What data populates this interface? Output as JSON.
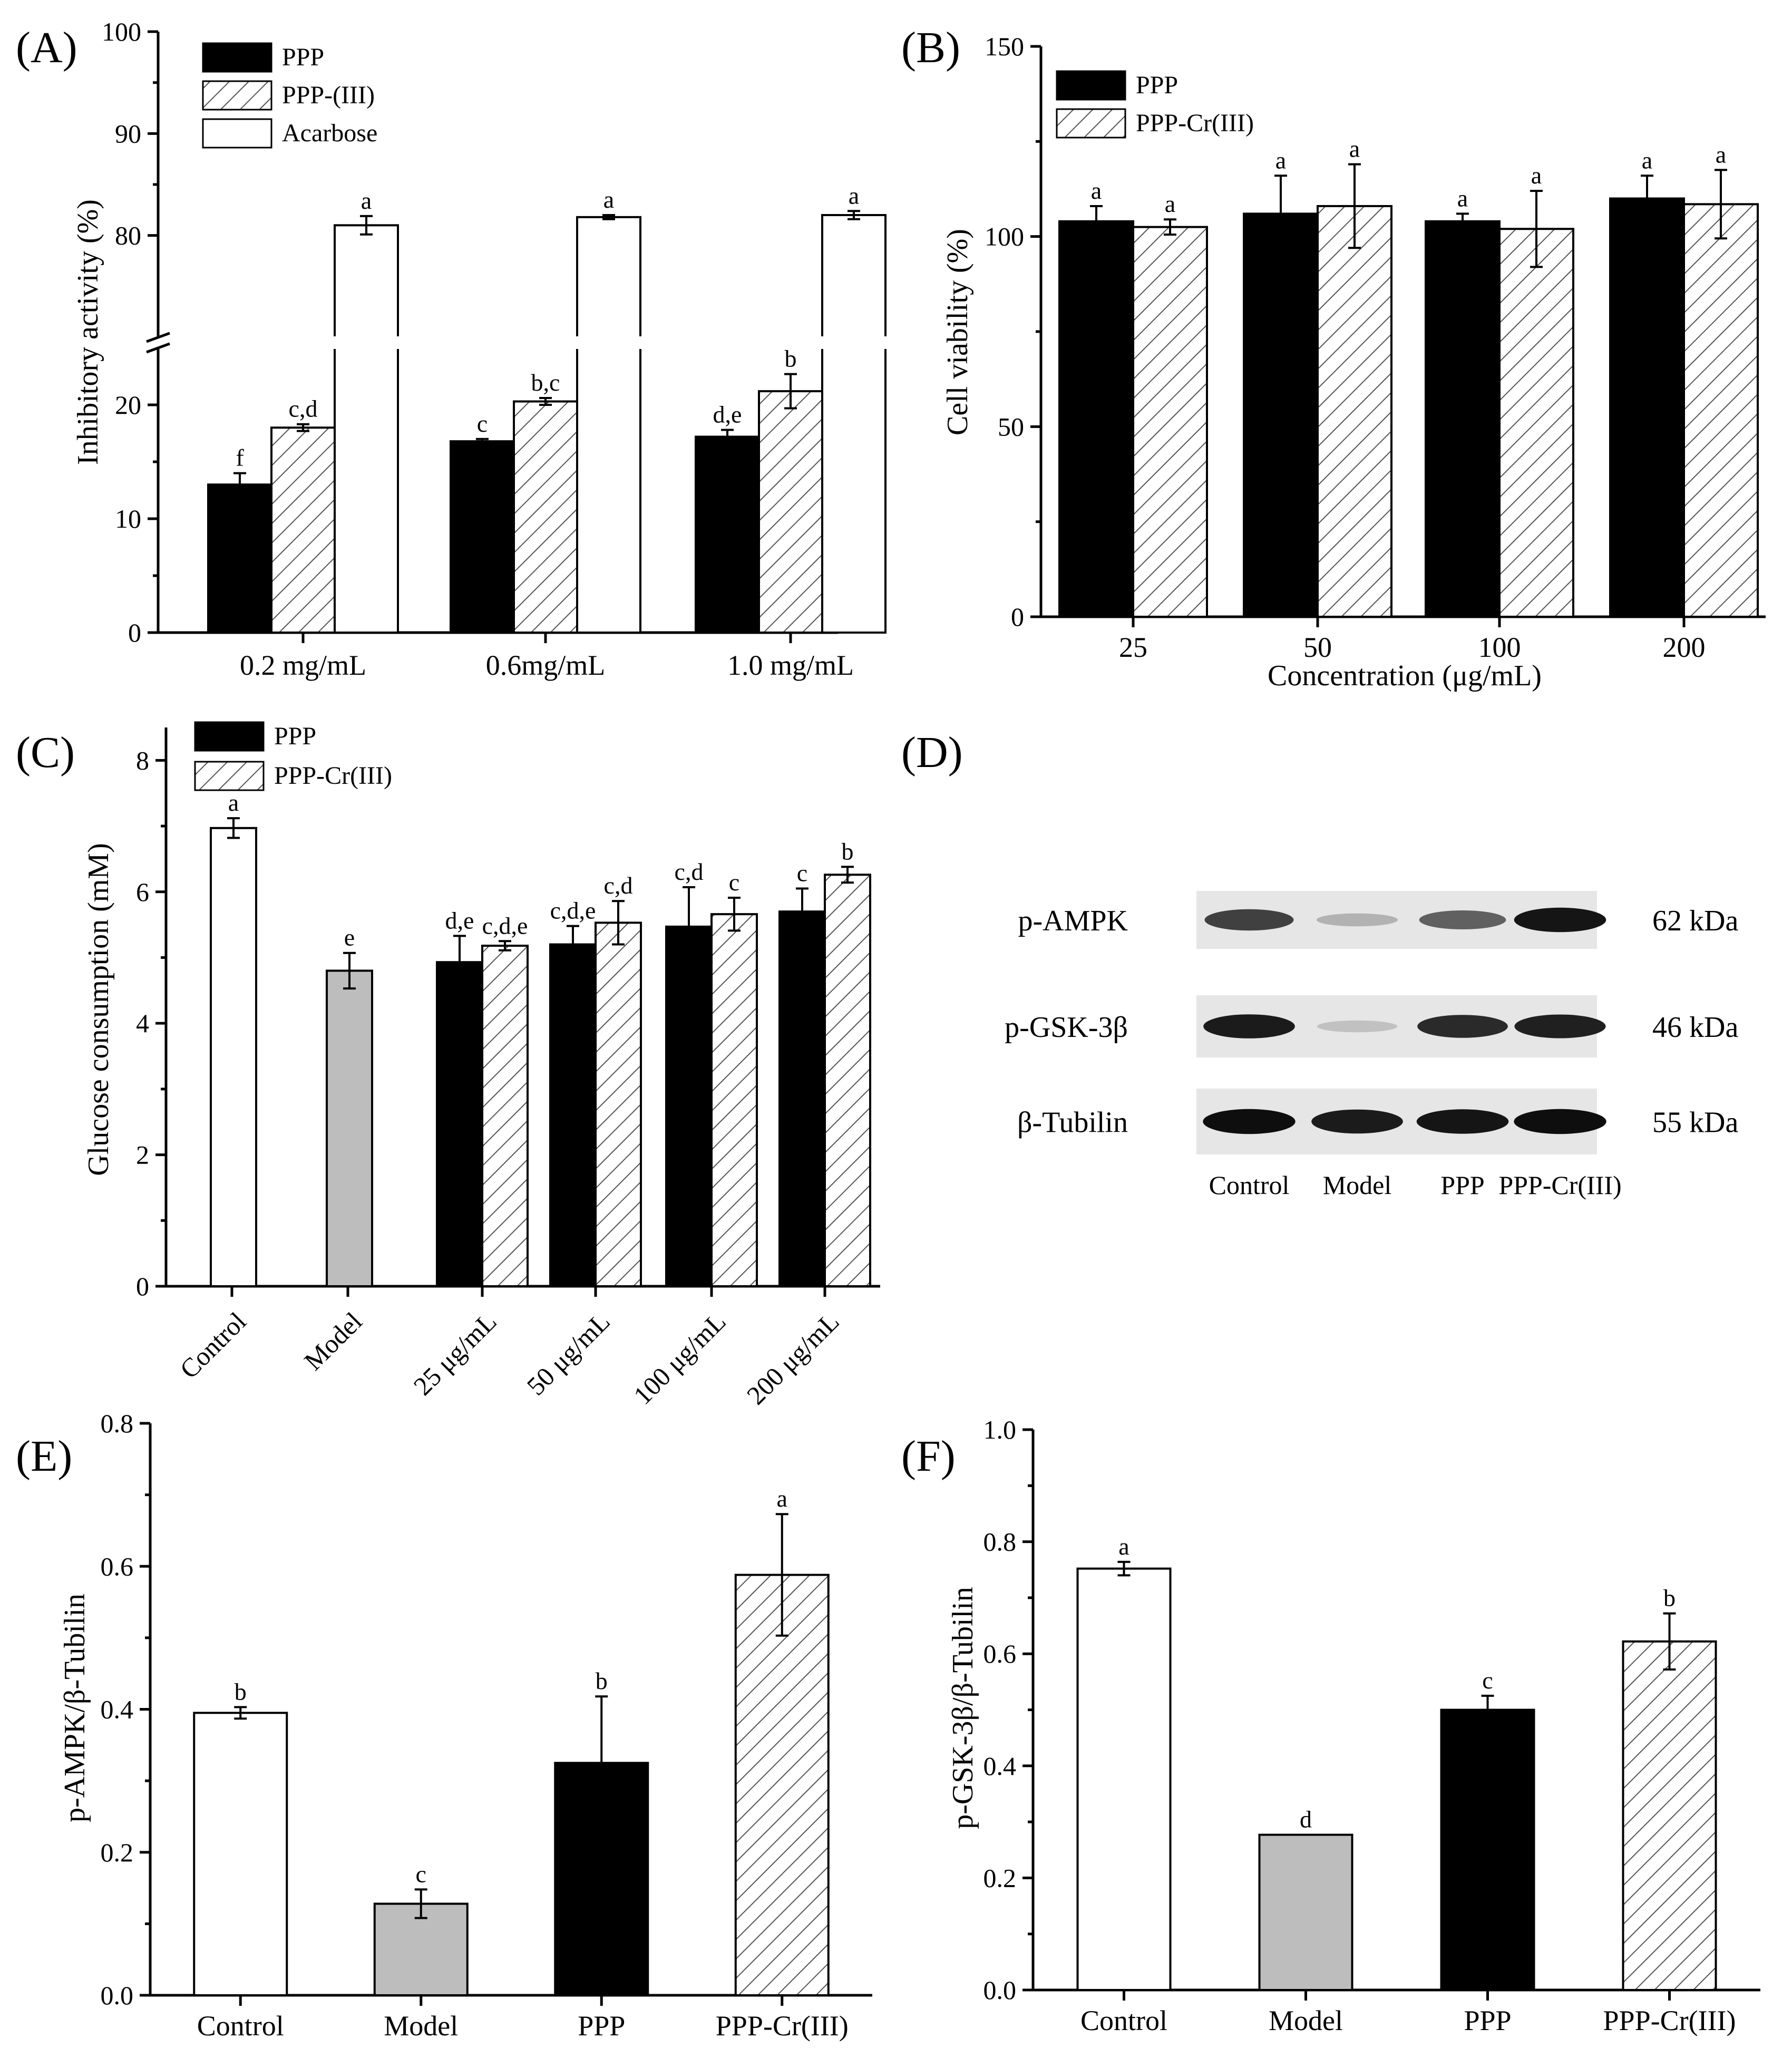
{
  "colors": {
    "black": "#000000",
    "gray": "#bdbdbd",
    "white": "#ffffff",
    "hatch": "#555555"
  },
  "chart_data": [
    {
      "panel": "(A)",
      "type": "bar",
      "ylabel": "Inhibitory activity (%)",
      "categories": [
        "0.2 mg/mL",
        "0.6mg/mL",
        "1.0 mg/mL"
      ],
      "ybreak": [
        25,
        70
      ],
      "yticks": [
        0,
        10,
        20,
        80,
        90,
        100
      ],
      "series": [
        {
          "name": "PPP",
          "style": "black",
          "values": [
            13.0,
            16.8,
            17.2
          ],
          "errors": [
            1.0,
            0.2,
            0.6
          ],
          "letters": [
            "f",
            "c",
            "d,e"
          ]
        },
        {
          "name": "PPP-(III)",
          "style": "hatch",
          "values": [
            18.0,
            20.3,
            21.2
          ],
          "errors": [
            0.3,
            0.3,
            1.5
          ],
          "letters": [
            "c,d",
            "b,c",
            "b"
          ]
        },
        {
          "name": "Acarbose",
          "style": "white",
          "values": [
            81.0,
            81.8,
            82.0
          ],
          "errors": [
            0.9,
            0.2,
            0.4
          ],
          "letters": [
            "a",
            "a",
            "a"
          ]
        }
      ]
    },
    {
      "panel": "(B)",
      "type": "bar",
      "ylabel": "Cell viability (%)",
      "xlabel": "Concentration (μg/mL)",
      "categories": [
        "25",
        "50",
        "100",
        "200"
      ],
      "ylim": [
        0,
        150
      ],
      "yticks": [
        0,
        50,
        100,
        150
      ],
      "series": [
        {
          "name": "PPP",
          "style": "black",
          "values": [
            104,
            106,
            104,
            110
          ],
          "errors": [
            4,
            10,
            2,
            6
          ],
          "letters": [
            "a",
            "a",
            "a",
            "a"
          ]
        },
        {
          "name": "PPP-Cr(III)",
          "style": "hatch",
          "values": [
            102.5,
            108,
            102,
            108.5
          ],
          "errors": [
            2,
            11,
            10,
            9
          ],
          "letters": [
            "a",
            "a",
            "a",
            "a"
          ]
        }
      ]
    },
    {
      "panel": "(C)",
      "type": "bar",
      "ylabel": "Glucose consumption (mM)",
      "categories": [
        "Control",
        "Model",
        "25 μg/mL",
        "50 μg/mL",
        "100 μg/mL",
        "200 μg/mL"
      ],
      "ylim": [
        0,
        8.5
      ],
      "yticks": [
        0,
        2,
        4,
        6,
        8
      ],
      "legend": [
        "PPP",
        "PPP-Cr(III)"
      ],
      "bars": [
        {
          "cat": 0,
          "style": "white",
          "value": 6.97,
          "error": 0.15,
          "letter": "a"
        },
        {
          "cat": 1,
          "style": "gray",
          "value": 4.8,
          "error": 0.27,
          "letter": "e"
        },
        {
          "cat": 2,
          "style": "black",
          "value": 4.93,
          "error": 0.4,
          "letter": "d,e"
        },
        {
          "cat": 2,
          "style": "hatch",
          "value": 5.18,
          "error": 0.07,
          "letter": "c,d,e"
        },
        {
          "cat": 3,
          "style": "black",
          "value": 5.2,
          "error": 0.28,
          "letter": "c,d,e"
        },
        {
          "cat": 3,
          "style": "hatch",
          "value": 5.53,
          "error": 0.33,
          "letter": "c,d"
        },
        {
          "cat": 4,
          "style": "black",
          "value": 5.47,
          "error": 0.6,
          "letter": "c,d"
        },
        {
          "cat": 4,
          "style": "hatch",
          "value": 5.66,
          "error": 0.25,
          "letter": "c"
        },
        {
          "cat": 5,
          "style": "black",
          "value": 5.7,
          "error": 0.35,
          "letter": "c"
        },
        {
          "cat": 5,
          "style": "hatch",
          "value": 6.26,
          "error": 0.12,
          "letter": "b"
        }
      ]
    },
    {
      "panel": "(E)",
      "type": "bar",
      "ylabel": "p-AMPK/β-Tubilin",
      "categories": [
        "Control",
        "Model",
        "PPP",
        "PPP-Cr(III)"
      ],
      "ylim": [
        0,
        0.8
      ],
      "yticks": [
        "0.0",
        "0.2",
        "0.4",
        "0.6",
        "0.8"
      ],
      "styles": [
        "white",
        "gray",
        "black",
        "hatch"
      ],
      "values": [
        0.395,
        0.128,
        0.325,
        0.588
      ],
      "errors": [
        0.008,
        0.02,
        0.093,
        0.085
      ],
      "letters": [
        "b",
        "c",
        "b",
        "a"
      ]
    },
    {
      "panel": "(F)",
      "type": "bar",
      "ylabel": "p-GSK-3β/β-Tubilin",
      "categories": [
        "Control",
        "Model",
        "PPP",
        "PPP-Cr(III)"
      ],
      "ylim": [
        0,
        1.0
      ],
      "yticks": [
        "0.0",
        "0.2",
        "0.4",
        "0.6",
        "0.8",
        "1.0"
      ],
      "styles": [
        "white",
        "gray",
        "black",
        "hatch"
      ],
      "values": [
        0.752,
        0.277,
        0.5,
        0.622
      ],
      "errors": [
        0.012,
        0.0,
        0.025,
        0.05
      ],
      "letters": [
        "a",
        "d",
        "c",
        "b"
      ]
    }
  ],
  "blot": {
    "panel": "(D)",
    "rows": [
      {
        "label": "p-AMPK",
        "size": "62 kDa",
        "intensity": [
          0.75,
          0.22,
          0.6,
          0.95
        ]
      },
      {
        "label": "p-GSK-3β",
        "size": "46 kDa",
        "intensity": [
          0.92,
          0.15,
          0.85,
          0.9
        ]
      },
      {
        "label": "β-Tubilin",
        "size": "55 kDa",
        "intensity": [
          0.98,
          0.92,
          0.95,
          0.98
        ]
      }
    ],
    "lanes": [
      "Control",
      "Model",
      "PPP",
      "PPP-Cr(III)"
    ]
  }
}
